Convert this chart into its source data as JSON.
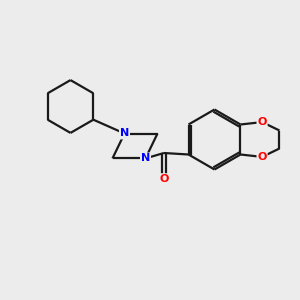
{
  "background_color": "#ececec",
  "bond_color": "#1a1a1a",
  "nitrogen_color": "#0000ff",
  "oxygen_color": "#ff0000",
  "line_width": 1.6,
  "figsize": [
    3.0,
    3.0
  ],
  "dpi": 100,
  "xlim": [
    0,
    10
  ],
  "ylim": [
    0,
    10
  ]
}
